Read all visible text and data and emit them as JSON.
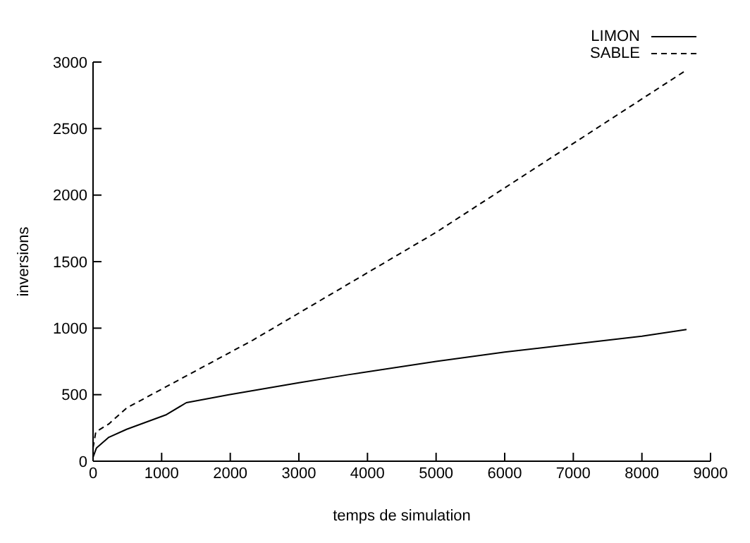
{
  "chart_data": {
    "type": "line",
    "xlabel": "temps de simulation",
    "ylabel": "inversions",
    "xlim": [
      0,
      9000
    ],
    "ylim": [
      0,
      3000
    ],
    "xticks": [
      0,
      1000,
      2000,
      3000,
      4000,
      5000,
      6000,
      7000,
      8000,
      9000
    ],
    "yticks": [
      0,
      500,
      1000,
      1500,
      2000,
      2500,
      3000
    ],
    "grid": false,
    "legend": "top right",
    "marker": "none",
    "series": [
      {
        "name": "LIMON",
        "color": "#000000",
        "line_style": "solid",
        "x": [
          0,
          50,
          230,
          490,
          1070,
          1360,
          1980,
          3000,
          3720,
          5000,
          6000,
          7000,
          8000,
          8650
        ],
        "values": [
          30,
          100,
          180,
          240,
          350,
          440,
          500,
          590,
          650,
          750,
          820,
          880,
          940,
          990
        ]
      },
      {
        "name": "SABLE",
        "color": "#000000",
        "line_style": "dashed",
        "x": [
          0,
          40,
          230,
          490,
          2330,
          5000,
          8650
        ],
        "values": [
          100,
          220,
          280,
          400,
          910,
          1720,
          2940
        ]
      }
    ]
  }
}
